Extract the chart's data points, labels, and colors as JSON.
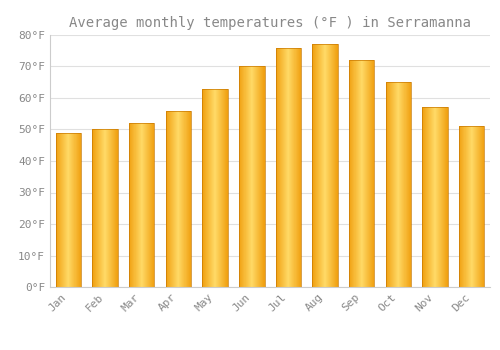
{
  "title": "Average monthly temperatures (°F ) in Serramanna",
  "months": [
    "Jan",
    "Feb",
    "Mar",
    "Apr",
    "May",
    "Jun",
    "Jul",
    "Aug",
    "Sep",
    "Oct",
    "Nov",
    "Dec"
  ],
  "values": [
    49,
    50,
    52,
    56,
    63,
    70,
    76,
    77,
    72,
    65,
    57,
    51
  ],
  "bar_color_main": "#FFC125",
  "bar_color_light": "#FFD966",
  "bar_color_dark": "#E8960A",
  "ylim": [
    0,
    80
  ],
  "yticks": [
    0,
    10,
    20,
    30,
    40,
    50,
    60,
    70,
    80
  ],
  "ytick_labels": [
    "0°F",
    "10°F",
    "20°F",
    "30°F",
    "40°F",
    "50°F",
    "60°F",
    "70°F",
    "80°F"
  ],
  "background_color": "#FFFFFF",
  "grid_color": "#E0E0E0",
  "title_fontsize": 10,
  "tick_fontsize": 8,
  "font_color": "#888888"
}
